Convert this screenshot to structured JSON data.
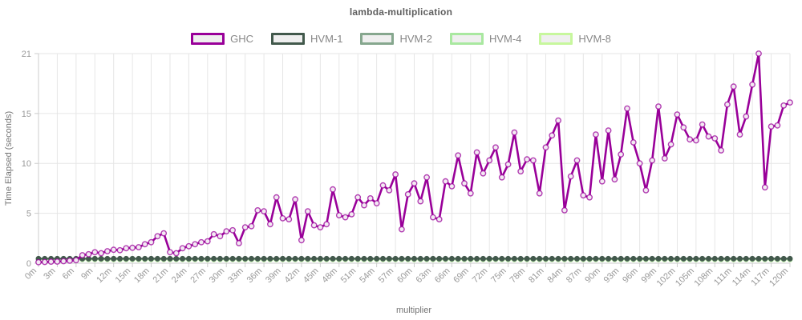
{
  "chart_data": {
    "type": "line",
    "title": "lambda-multiplication",
    "xlabel": "multiplier",
    "ylabel": "Time Elapsed (seconds)",
    "xlim": [
      0,
      120
    ],
    "ylim": [
      0,
      21
    ],
    "x_step_per_point": 1,
    "x_tick_step": 3,
    "x_tick_suffix": "m",
    "y_ticks": [
      0,
      5,
      10,
      15,
      21
    ],
    "grid": true,
    "legend_position": "top-center",
    "colors": {
      "grid": "#e6e6e6",
      "axis": "#cccccc",
      "tick_label": "#999999",
      "title": "#5f5f5f",
      "axis_title": "#757575",
      "legend_label": "#878787",
      "swatch_fill": "#efefef",
      "marker_fill": "#f3eaf3"
    },
    "series": [
      {
        "name": "GHC",
        "color": "#990099",
        "marker": "open-circle",
        "values": [
          0.1,
          0.12,
          0.15,
          0.16,
          0.2,
          0.25,
          0.3,
          0.8,
          0.9,
          1.1,
          1.0,
          1.2,
          1.35,
          1.3,
          1.5,
          1.55,
          1.6,
          1.9,
          2.1,
          2.7,
          3.0,
          1.1,
          1.0,
          1.5,
          1.7,
          1.9,
          2.1,
          2.2,
          2.9,
          2.7,
          3.2,
          3.3,
          2.0,
          3.6,
          3.7,
          5.3,
          5.2,
          3.9,
          6.6,
          4.5,
          4.4,
          6.4,
          2.3,
          5.2,
          3.8,
          3.6,
          3.9,
          7.4,
          4.8,
          4.6,
          4.9,
          6.6,
          5.8,
          6.5,
          6.0,
          7.8,
          7.3,
          8.9,
          3.4,
          6.9,
          8.0,
          6.2,
          8.6,
          4.6,
          4.4,
          8.2,
          7.7,
          10.8,
          8.0,
          7.0,
          11.1,
          9.0,
          10.3,
          11.6,
          8.6,
          9.9,
          13.1,
          9.2,
          10.4,
          10.3,
          7.0,
          11.6,
          12.8,
          14.3,
          5.3,
          8.7,
          10.3,
          6.8,
          6.6,
          12.9,
          8.2,
          13.3,
          8.4,
          10.9,
          15.5,
          12.1,
          10.0,
          7.3,
          10.3,
          15.7,
          10.5,
          11.9,
          14.9,
          13.6,
          12.4,
          12.3,
          13.9,
          12.7,
          12.5,
          11.3,
          15.9,
          17.7,
          12.9,
          14.7,
          17.9,
          21.0,
          7.6,
          13.7,
          13.8,
          15.8,
          16.1
        ]
      },
      {
        "name": "HVM-1",
        "color": "#42594c",
        "marker": "filled-circle",
        "constant": 0.46
      },
      {
        "name": "HVM-2",
        "color": "#86a78e",
        "marker": "filled-circle",
        "constant": 0.43
      },
      {
        "name": "HVM-4",
        "color": "#a9e8a0",
        "marker": "filled-circle",
        "constant": 0.4
      },
      {
        "name": "HVM-8",
        "color": "#c7f79d",
        "marker": "filled-circle",
        "constant": 0.37
      }
    ]
  }
}
